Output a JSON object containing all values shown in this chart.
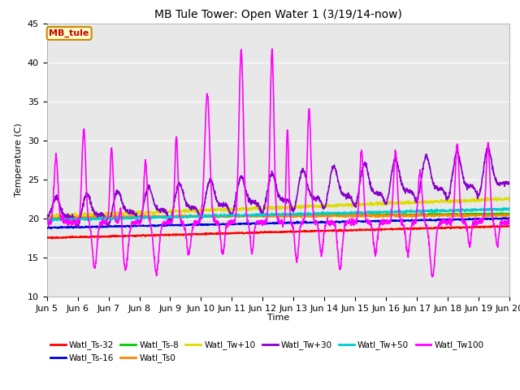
{
  "title": "MB Tule Tower: Open Water 1 (3/19/14-now)",
  "xlabel": "Time",
  "ylabel": "Temperature (C)",
  "ylim": [
    10,
    45
  ],
  "yticks": [
    10,
    15,
    20,
    25,
    30,
    35,
    40,
    45
  ],
  "xlim": [
    0,
    15
  ],
  "xtick_labels": [
    "Jun 5",
    "Jun 6",
    "Jun 7",
    "Jun 8",
    "Jun 9",
    "Jun 10",
    "Jun 11",
    "Jun 12",
    "Jun 13",
    "Jun 14",
    "Jun 15",
    "Jun 16",
    "Jun 17",
    "Jun 18",
    "Jun 19",
    "Jun 20"
  ],
  "annotation_text": "MB_tule",
  "annotation_bg": "#ffffcc",
  "annotation_border": "#cc8800",
  "annotation_text_color": "#cc0000",
  "plot_bg": "#e8e8e8",
  "fig_bg": "#ffffff",
  "series_order": [
    "Watl_Ts-32",
    "Watl_Ts-16",
    "Watl_Ts-8",
    "Watl_Ts0",
    "Watl_Tw+10",
    "Watl_Tw+30",
    "Watl_Tw+50",
    "Watl_Tw100"
  ],
  "series_colors": {
    "Watl_Ts-32": "#ff0000",
    "Watl_Ts-16": "#0000dd",
    "Watl_Ts-8": "#00cc00",
    "Watl_Ts0": "#ff8800",
    "Watl_Tw+10": "#dddd00",
    "Watl_Tw+30": "#8800cc",
    "Watl_Tw+50": "#00cccc",
    "Watl_Tw100": "#ff00ff"
  },
  "lw": 1.2,
  "title_fontsize": 10,
  "axis_fontsize": 8,
  "tick_fontsize": 8,
  "legend_fontsize": 7.5,
  "annot_fontsize": 8
}
